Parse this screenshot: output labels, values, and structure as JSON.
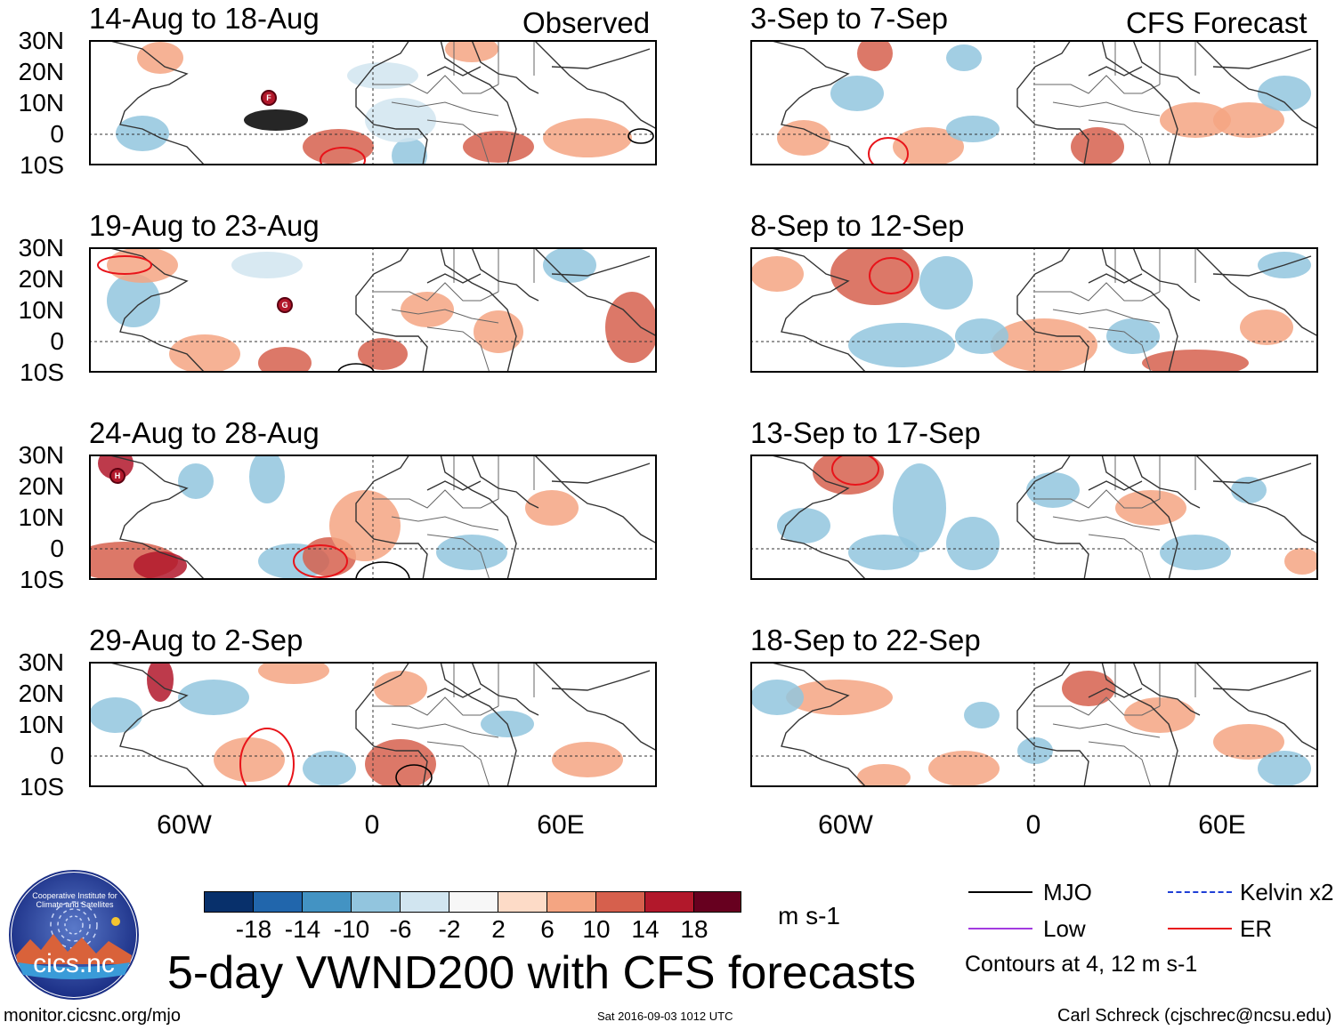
{
  "header": {
    "left_label": "Observed",
    "right_label": "CFS Forecast"
  },
  "panels_left": [
    {
      "title": "14-Aug to 18-Aug"
    },
    {
      "title": "19-Aug to 23-Aug"
    },
    {
      "title": "24-Aug to 28-Aug"
    },
    {
      "title": "29-Aug to 2-Sep"
    }
  ],
  "panels_right": [
    {
      "title": "3-Sep to 7-Sep"
    },
    {
      "title": "8-Sep to 12-Sep"
    },
    {
      "title": "13-Sep to 17-Sep"
    },
    {
      "title": "18-Sep to 22-Sep"
    }
  ],
  "axes": {
    "lat_labels": [
      "30N",
      "20N",
      "10N",
      "0",
      "10S"
    ],
    "lon_labels": [
      "60W",
      "0",
      "60E"
    ]
  },
  "colorbar": {
    "colors": [
      "#08306b",
      "#2166ac",
      "#4393c3",
      "#92c5de",
      "#d1e5f0",
      "#f7f7f7",
      "#fddbc7",
      "#f4a582",
      "#d6604d",
      "#b2182b",
      "#67001f"
    ],
    "tick_labels": [
      "-18",
      "-14",
      "-10",
      "-6",
      "-2",
      "2",
      "6",
      "10",
      "14",
      "18"
    ],
    "units": "m s-1"
  },
  "legend": {
    "items": [
      {
        "label": "MJO",
        "color": "#000000"
      },
      {
        "label": "Kelvin x2",
        "color": "#1f3fd6"
      },
      {
        "label": "Low",
        "color": "#a23be0"
      },
      {
        "label": "ER",
        "color": "#e8141a"
      }
    ],
    "contours_note": "Contours at 4, 12 m s-1"
  },
  "main_title": "5-day VWND200 with CFS forecasts",
  "logo_text": "cics.nc",
  "logo_ring_text": "Cooperative Institute for Climate and Satellites",
  "footer": {
    "url": "monitor.cicsnc.org/mjo",
    "timestamp": "Sat 2016-09-03 1012 UTC",
    "author": "Carl Schreck (cjschrec@ncsu.edu)"
  },
  "storm_markers": [
    {
      "panel": "left-0",
      "label": "F"
    },
    {
      "panel": "left-1",
      "label": "G"
    },
    {
      "panel": "left-2",
      "label": "H"
    }
  ]
}
